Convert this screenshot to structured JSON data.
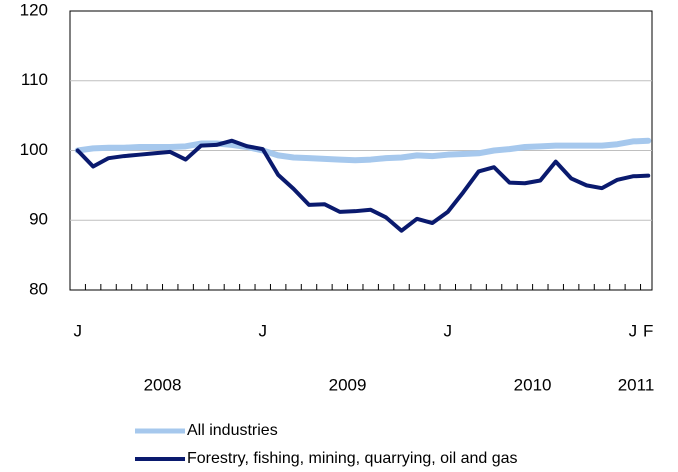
{
  "chart_data": {
    "type": "line",
    "categories": [
      "J",
      null,
      null,
      null,
      null,
      null,
      null,
      null,
      null,
      null,
      null,
      null,
      "J",
      null,
      null,
      null,
      null,
      null,
      null,
      null,
      null,
      null,
      null,
      null,
      "J",
      null,
      null,
      null,
      null,
      null,
      null,
      null,
      null,
      null,
      null,
      null,
      "J",
      "F"
    ],
    "year_labels": [
      "2008",
      "2009",
      "2010",
      "2011"
    ],
    "series": [
      {
        "name": "All industries",
        "color": "#a6c8ed",
        "values": [
          100,
          100.3,
          100.4,
          100.4,
          100.5,
          100.5,
          100.5,
          100.6,
          101,
          101,
          100.8,
          100.5,
          100,
          99.3,
          99,
          98.9,
          98.8,
          98.7,
          98.6,
          98.7,
          98.9,
          99,
          99.3,
          99.2,
          99.4,
          99.5,
          99.6,
          100,
          100.2,
          100.5,
          100.6,
          100.7,
          100.7,
          100.7,
          100.7,
          100.9,
          101.3,
          101.4
        ]
      },
      {
        "name": "Forestry, fishing, mining, quarrying, oil and gas",
        "color": "#0a1a6e",
        "values": [
          100,
          97.7,
          98.9,
          99.2,
          99.4,
          99.6,
          99.8,
          98.7,
          100.7,
          100.8,
          101.4,
          100.6,
          100.2,
          96.5,
          94.5,
          92.2,
          92.3,
          91.2,
          91.3,
          91.5,
          90.4,
          88.5,
          90.2,
          89.6,
          91.2,
          94,
          97,
          97.6,
          95.4,
          95.3,
          95.7,
          98.4,
          96,
          95,
          94.6,
          95.8,
          96.3,
          96.4
        ]
      }
    ],
    "ylim": [
      80,
      120
    ],
    "yticks": [
      80,
      90,
      100,
      110,
      120
    ],
    "grid": true
  }
}
